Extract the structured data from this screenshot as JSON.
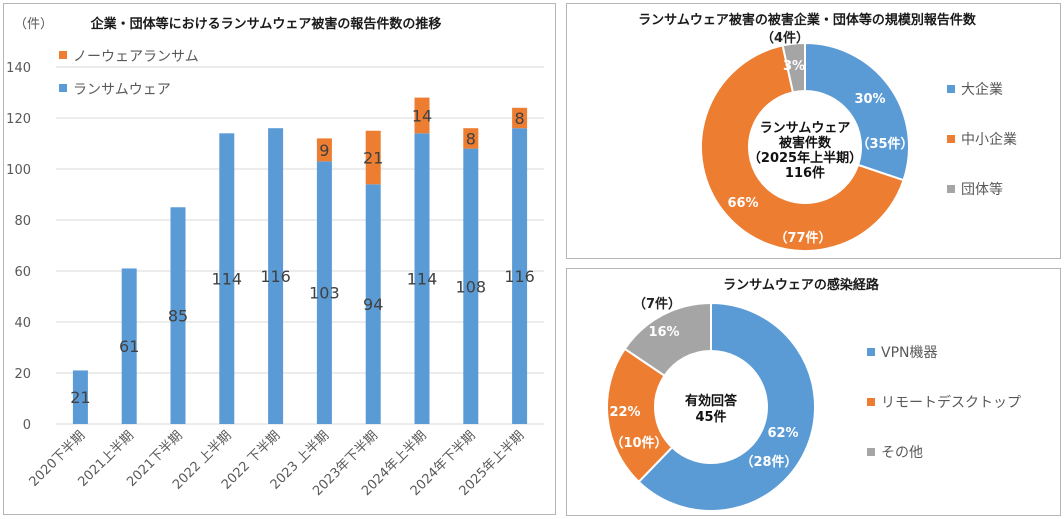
{
  "colors": {
    "ransomware": "#5b9bd5",
    "noware": "#ed7d31",
    "other": "#a5a5a5",
    "grid": "#d9d9d9"
  },
  "chart_data": [
    {
      "type": "bar",
      "stacked": true,
      "title": "企業・団体等におけるランサムウェア被害の報告件数の推移",
      "ylabel": "（件）",
      "ylim": [
        0,
        140
      ],
      "yticks": [
        0,
        20,
        40,
        60,
        80,
        100,
        120,
        140
      ],
      "grid": true,
      "categories": [
        "2020下半期",
        "2021上半期",
        "2021下半期",
        "2022 上半期",
        "2022 下半期",
        "2023 上半期",
        "2023年下半期",
        "2024年上半期",
        "2024年下半期",
        "2025年上半期"
      ],
      "series": [
        {
          "name": "ランサムウェア",
          "values": [
            21,
            61,
            85,
            114,
            116,
            103,
            94,
            114,
            108,
            116
          ]
        },
        {
          "name": "ノーウェアランサム",
          "values": [
            0,
            0,
            0,
            0,
            0,
            9,
            21,
            14,
            8,
            8
          ]
        }
      ],
      "legend": [
        "ノーウェアランサム",
        "ランサムウェア"
      ]
    },
    {
      "type": "pie",
      "donut": true,
      "title": "ランサムウェア被害の被害企業・団体等の規模別報告件数",
      "categories": [
        "大企業",
        "中小企業",
        "団体等"
      ],
      "values": [
        35,
        77,
        4
      ],
      "percent_labels": [
        "30%",
        "66%",
        "3%"
      ],
      "count_labels": [
        "（35件）",
        "（77件）",
        "（4件）"
      ],
      "center_text": [
        "ランサムウェア",
        "被害件数",
        "（2025年上半期）",
        "116件"
      ]
    },
    {
      "type": "pie",
      "donut": true,
      "title": "ランサムウェアの感染経路",
      "categories": [
        "VPN機器",
        "リモートデスクトップ",
        "その他"
      ],
      "values": [
        28,
        10,
        7
      ],
      "percent_labels": [
        "62%",
        "22%",
        "16%"
      ],
      "count_labels": [
        "（28件）",
        "（10件）",
        "（7件）"
      ],
      "center_text": [
        "有効回答",
        "45件"
      ]
    }
  ]
}
